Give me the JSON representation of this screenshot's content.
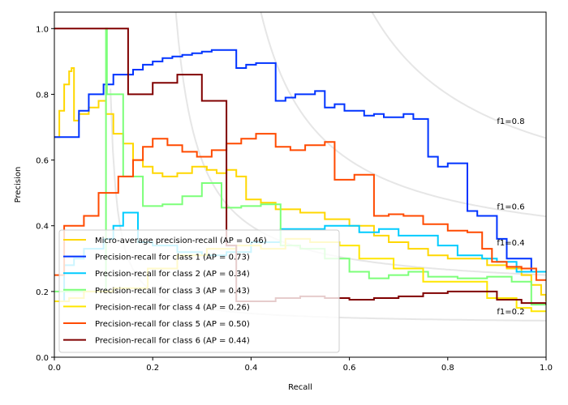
{
  "chart_data": {
    "type": "line",
    "title": "",
    "xlabel": "Recall",
    "ylabel": "Precision",
    "xlim": [
      0.0,
      1.0
    ],
    "ylim": [
      0.0,
      1.05
    ],
    "grid": false,
    "legend_position": "lower-left",
    "xticks": [
      "0.0",
      "0.2",
      "0.4",
      "0.6",
      "0.8",
      "1.0"
    ],
    "yticks": [
      "0.0",
      "0.2",
      "0.4",
      "0.6",
      "0.8",
      "1.0"
    ],
    "iso_f1": [
      {
        "f1": 0.2,
        "label": "f1=0.2"
      },
      {
        "f1": 0.4,
        "label": "f1=0.4"
      },
      {
        "f1": 0.6,
        "label": "f1=0.6"
      },
      {
        "f1": 0.8,
        "label": "f1=0.8"
      }
    ],
    "series": [
      {
        "name": "Micro-average precision-recall (AP = 0.46)",
        "color": "#ffd700",
        "recall": [
          0.0,
          0.01,
          0.02,
          0.03,
          0.035,
          0.04,
          0.05,
          0.07,
          0.09,
          0.105,
          0.12,
          0.14,
          0.16,
          0.18,
          0.2,
          0.22,
          0.25,
          0.28,
          0.31,
          0.33,
          0.35,
          0.37,
          0.39,
          0.42,
          0.45,
          0.5,
          0.55,
          0.6,
          0.65,
          0.68,
          0.72,
          0.76,
          0.8,
          0.84,
          0.88,
          0.92,
          0.95,
          0.97,
          0.99,
          1.0
        ],
        "precision": [
          0.67,
          0.75,
          0.83,
          0.87,
          0.88,
          0.72,
          0.74,
          0.76,
          0.78,
          0.74,
          0.68,
          0.65,
          0.6,
          0.58,
          0.56,
          0.55,
          0.56,
          0.58,
          0.57,
          0.56,
          0.57,
          0.55,
          0.48,
          0.47,
          0.45,
          0.44,
          0.42,
          0.4,
          0.37,
          0.35,
          0.33,
          0.31,
          0.3,
          0.3,
          0.28,
          0.27,
          0.25,
          0.22,
          0.19,
          0.17
        ]
      },
      {
        "name": "Precision-recall for class 1 (AP = 0.73)",
        "color": "#0033ff",
        "recall": [
          0.0,
          0.05,
          0.07,
          0.1,
          0.12,
          0.14,
          0.16,
          0.18,
          0.2,
          0.22,
          0.24,
          0.26,
          0.28,
          0.3,
          0.32,
          0.34,
          0.37,
          0.39,
          0.41,
          0.43,
          0.45,
          0.47,
          0.49,
          0.51,
          0.53,
          0.55,
          0.57,
          0.59,
          0.61,
          0.63,
          0.65,
          0.67,
          0.69,
          0.71,
          0.73,
          0.76,
          0.78,
          0.8,
          0.82,
          0.84,
          0.86,
          0.88,
          0.9,
          0.92,
          0.94,
          0.97
        ],
        "precision": [
          0.67,
          0.75,
          0.8,
          0.83,
          0.86,
          0.86,
          0.875,
          0.89,
          0.9,
          0.91,
          0.915,
          0.92,
          0.925,
          0.93,
          0.935,
          0.935,
          0.88,
          0.89,
          0.895,
          0.895,
          0.78,
          0.79,
          0.8,
          0.8,
          0.81,
          0.76,
          0.77,
          0.75,
          0.75,
          0.735,
          0.74,
          0.73,
          0.73,
          0.74,
          0.725,
          0.61,
          0.58,
          0.59,
          0.59,
          0.445,
          0.43,
          0.43,
          0.36,
          0.3,
          0.3,
          0.26
        ]
      },
      {
        "name": "Precision-recall for class 2 (AP = 0.34)",
        "color": "#00ccff",
        "recall": [
          0.0,
          0.02,
          0.04,
          0.06,
          0.1,
          0.12,
          0.14,
          0.17,
          0.2,
          0.25,
          0.3,
          0.35,
          0.4,
          0.46,
          0.5,
          0.55,
          0.58,
          0.62,
          0.66,
          0.7,
          0.74,
          0.78,
          0.82,
          0.87,
          0.9,
          0.94,
          0.97,
          1.0
        ],
        "precision": [
          0.17,
          0.28,
          0.3,
          0.33,
          0.36,
          0.4,
          0.44,
          0.35,
          0.34,
          0.32,
          0.31,
          0.32,
          0.35,
          0.39,
          0.39,
          0.4,
          0.4,
          0.38,
          0.39,
          0.37,
          0.37,
          0.34,
          0.31,
          0.3,
          0.29,
          0.26,
          0.26,
          0.26
        ]
      },
      {
        "name": "Precision-recall for class 3 (AP = 0.43)",
        "color": "#7cff79",
        "recall": [
          0.0,
          0.105,
          0.107,
          0.14,
          0.18,
          0.22,
          0.26,
          0.3,
          0.34,
          0.38,
          0.42,
          0.46,
          0.5,
          0.55,
          0.6,
          0.64,
          0.68,
          0.72,
          0.76,
          0.82,
          0.88,
          0.93,
          0.97,
          1.0
        ],
        "precision": [
          0.2,
          1.0,
          0.8,
          0.55,
          0.46,
          0.465,
          0.49,
          0.53,
          0.455,
          0.46,
          0.465,
          0.34,
          0.33,
          0.3,
          0.26,
          0.24,
          0.25,
          0.26,
          0.245,
          0.24,
          0.245,
          0.23,
          0.16,
          0.16
        ]
      },
      {
        "name": "Precision-recall for class 4 (AP = 0.26)",
        "color": "#ffe600",
        "recall": [
          0.0,
          0.03,
          0.06,
          0.12,
          0.19,
          0.25,
          0.31,
          0.37,
          0.42,
          0.47,
          0.52,
          0.58,
          0.62,
          0.69,
          0.75,
          0.82,
          0.88,
          0.94,
          0.97,
          1.0
        ],
        "precision": [
          0.17,
          0.18,
          0.2,
          0.21,
          0.27,
          0.31,
          0.33,
          0.34,
          0.33,
          0.36,
          0.35,
          0.34,
          0.3,
          0.27,
          0.23,
          0.23,
          0.18,
          0.15,
          0.14,
          0.14
        ]
      },
      {
        "name": "Precision-recall for class 5 (AP = 0.50)",
        "color": "#ff4a00",
        "recall": [
          0.0,
          0.02,
          0.06,
          0.09,
          0.13,
          0.16,
          0.18,
          0.2,
          0.23,
          0.26,
          0.29,
          0.32,
          0.35,
          0.38,
          0.41,
          0.45,
          0.48,
          0.51,
          0.55,
          0.57,
          0.61,
          0.65,
          0.68,
          0.71,
          0.75,
          0.8,
          0.84,
          0.87,
          0.89,
          0.92,
          0.95,
          0.98,
          1.0
        ],
        "precision": [
          0.25,
          0.4,
          0.43,
          0.5,
          0.55,
          0.6,
          0.64,
          0.665,
          0.645,
          0.625,
          0.61,
          0.63,
          0.65,
          0.665,
          0.68,
          0.64,
          0.63,
          0.645,
          0.655,
          0.54,
          0.555,
          0.43,
          0.435,
          0.43,
          0.405,
          0.385,
          0.38,
          0.33,
          0.29,
          0.275,
          0.27,
          0.235,
          0.235
        ]
      },
      {
        "name": "Precision-recall for class 6 (AP = 0.44)",
        "color": "#800000",
        "recall": [
          0.0,
          0.15,
          0.2,
          0.25,
          0.3,
          0.35,
          0.37,
          0.42,
          0.45,
          0.5,
          0.55,
          0.6,
          0.65,
          0.7,
          0.75,
          0.8,
          0.85,
          0.9,
          0.95,
          1.0
        ],
        "precision": [
          1.0,
          0.8,
          0.835,
          0.86,
          0.78,
          0.34,
          0.17,
          0.17,
          0.18,
          0.185,
          0.18,
          0.175,
          0.18,
          0.185,
          0.195,
          0.2,
          0.2,
          0.175,
          0.165,
          0.16
        ]
      }
    ]
  }
}
